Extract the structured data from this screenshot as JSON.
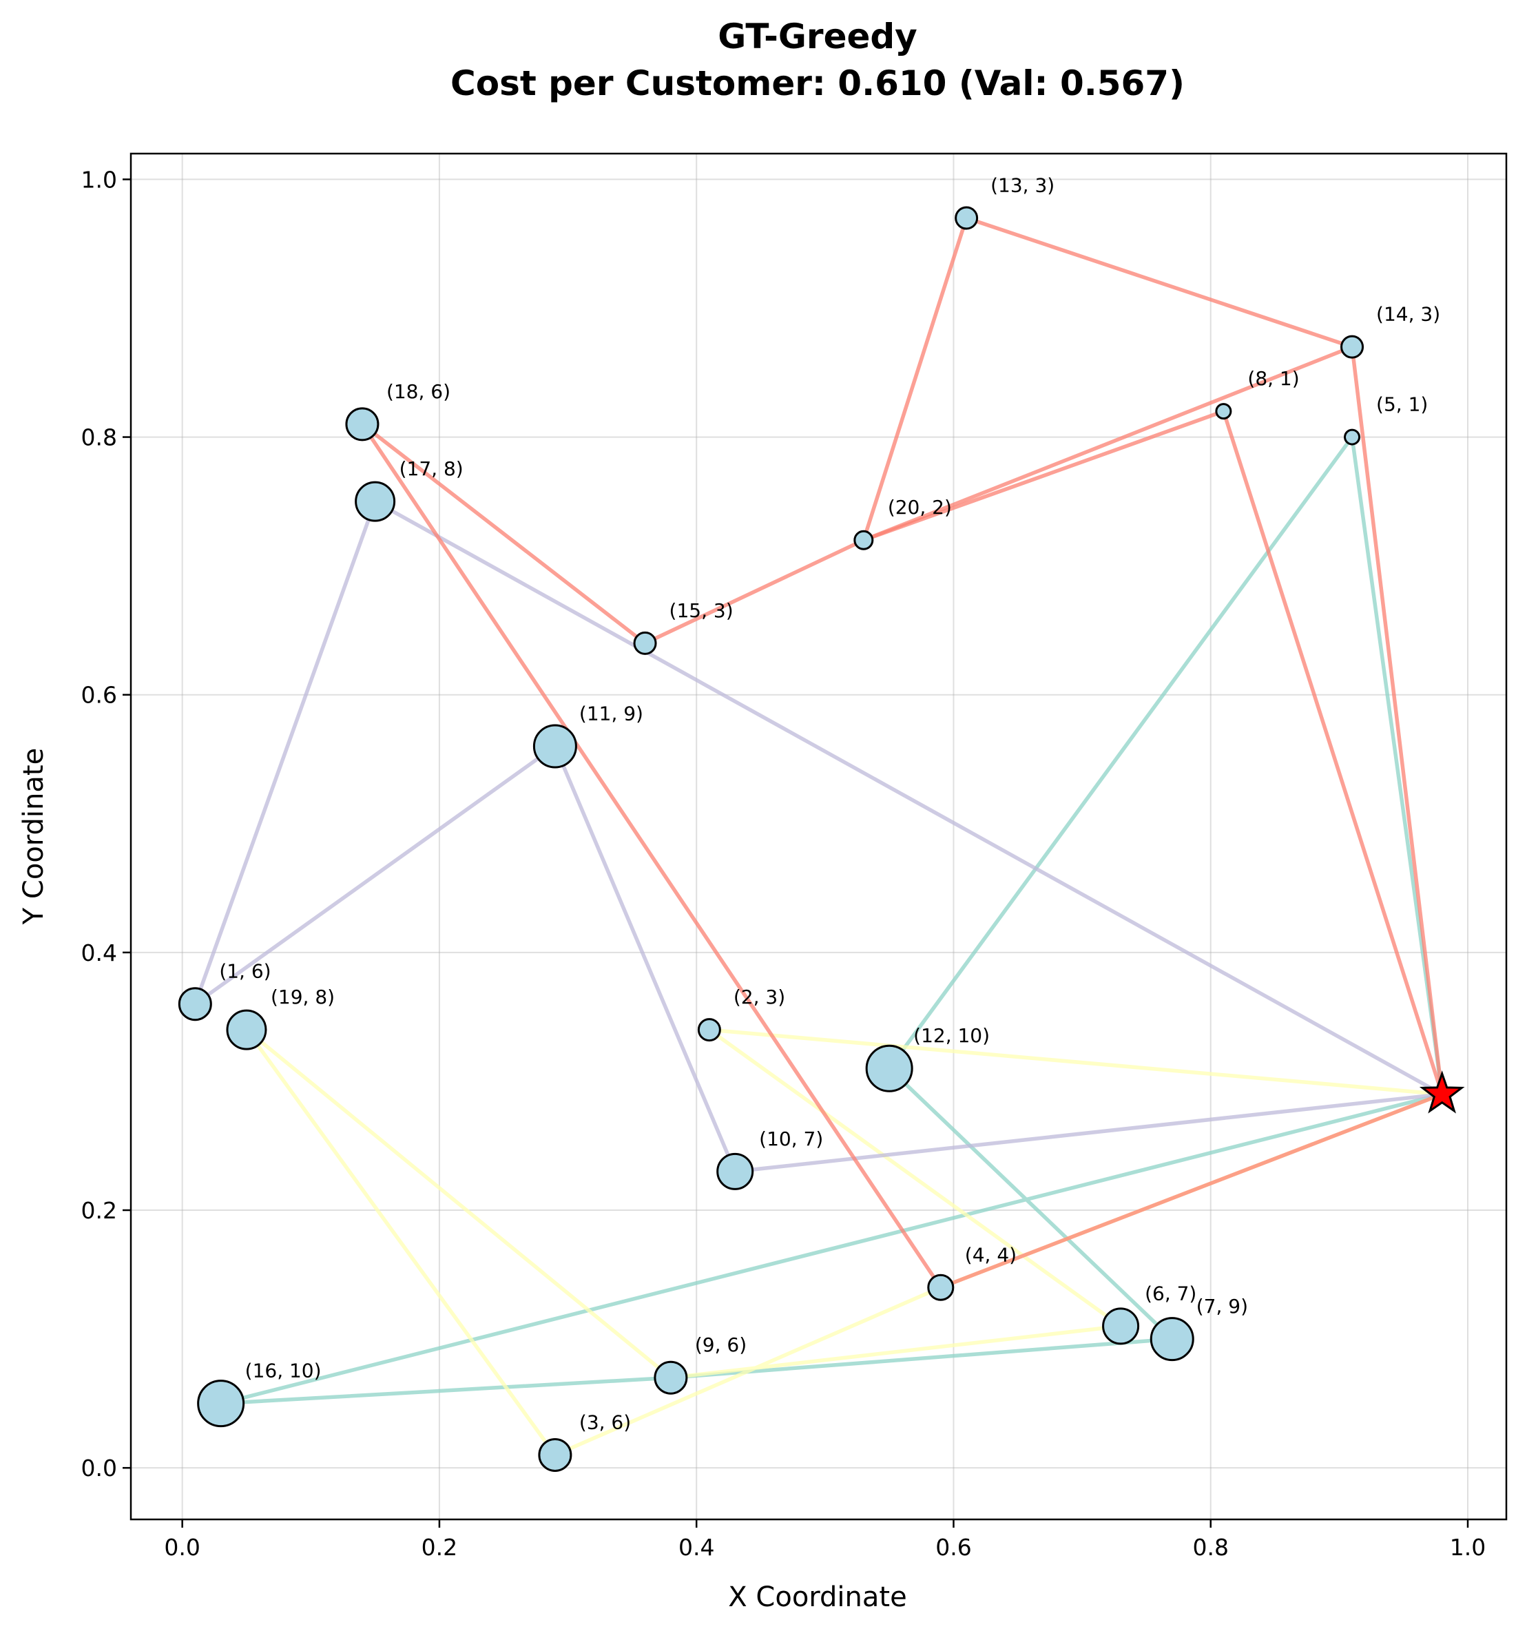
{
  "chart_data": {
    "type": "scatter",
    "title_line1": "GT-Greedy",
    "title_line2": "Cost per Customer: 0.610 (Val: 0.567)",
    "xlabel": "X Coordinate",
    "ylabel": "Y Coordinate",
    "xlim": [
      -0.04,
      1.03
    ],
    "ylim": [
      -0.04,
      1.02
    ],
    "xticks": [
      0.0,
      0.2,
      0.4,
      0.6,
      0.8,
      1.0
    ],
    "yticks": [
      0.0,
      0.2,
      0.4,
      0.6,
      0.8,
      1.0
    ],
    "tick_labels_x": [
      "0.0",
      "0.2",
      "0.4",
      "0.6",
      "0.8",
      "1.0"
    ],
    "tick_labels_y": [
      "0.0",
      "0.2",
      "0.4",
      "0.6",
      "0.8",
      "1.0"
    ],
    "grid": true,
    "depot": {
      "x": 0.98,
      "y": 0.29,
      "color": "#ff0000",
      "marker": "star"
    },
    "customer_color": "#add8e6",
    "customers": [
      {
        "id": 1,
        "demand": 6,
        "x": 0.01,
        "y": 0.36,
        "label": "(1, 6)"
      },
      {
        "id": 2,
        "demand": 3,
        "x": 0.41,
        "y": 0.34,
        "label": "(2, 3)"
      },
      {
        "id": 3,
        "demand": 6,
        "x": 0.29,
        "y": 0.01,
        "label": "(3, 6)"
      },
      {
        "id": 4,
        "demand": 4,
        "x": 0.59,
        "y": 0.14,
        "label": "(4, 4)"
      },
      {
        "id": 5,
        "demand": 1,
        "x": 0.91,
        "y": 0.8,
        "label": "(5, 1)"
      },
      {
        "id": 6,
        "demand": 7,
        "x": 0.73,
        "y": 0.11,
        "label": "(6, 7)"
      },
      {
        "id": 7,
        "demand": 9,
        "x": 0.77,
        "y": 0.1,
        "label": "(7, 9)"
      },
      {
        "id": 8,
        "demand": 1,
        "x": 0.81,
        "y": 0.82,
        "label": "(8, 1)"
      },
      {
        "id": 9,
        "demand": 6,
        "x": 0.38,
        "y": 0.07,
        "label": "(9, 6)"
      },
      {
        "id": 10,
        "demand": 7,
        "x": 0.43,
        "y": 0.23,
        "label": "(10, 7)"
      },
      {
        "id": 11,
        "demand": 9,
        "x": 0.29,
        "y": 0.56,
        "label": "(11, 9)"
      },
      {
        "id": 12,
        "demand": 10,
        "x": 0.55,
        "y": 0.31,
        "label": "(12, 10)"
      },
      {
        "id": 13,
        "demand": 3,
        "x": 0.61,
        "y": 0.97,
        "label": "(13, 3)"
      },
      {
        "id": 14,
        "demand": 3,
        "x": 0.91,
        "y": 0.87,
        "label": "(14, 3)"
      },
      {
        "id": 15,
        "demand": 3,
        "x": 0.36,
        "y": 0.64,
        "label": "(15, 3)"
      },
      {
        "id": 16,
        "demand": 10,
        "x": 0.03,
        "y": 0.05,
        "label": "(16, 10)"
      },
      {
        "id": 17,
        "demand": 8,
        "x": 0.15,
        "y": 0.75,
        "label": "(17, 8)"
      },
      {
        "id": 18,
        "demand": 6,
        "x": 0.14,
        "y": 0.81,
        "label": "(18, 6)"
      },
      {
        "id": 19,
        "demand": 8,
        "x": 0.05,
        "y": 0.34,
        "label": "(19, 8)"
      },
      {
        "id": 20,
        "demand": 2,
        "x": 0.53,
        "y": 0.72,
        "label": "(20, 2)"
      }
    ],
    "routes": [
      {
        "color": "#8dd3c7",
        "stops": [
          0,
          5,
          12,
          7,
          9,
          16,
          0
        ]
      },
      {
        "color": "#ffffb3",
        "stops": [
          0,
          2,
          6,
          9,
          19,
          3,
          4,
          0
        ]
      },
      {
        "color": "#bebada",
        "stops": [
          0,
          10,
          11,
          1,
          17,
          0
        ]
      },
      {
        "color": "#fb8072",
        "stops": [
          0,
          8,
          20,
          15,
          18,
          4,
          0
        ]
      },
      {
        "color": "#fb8072",
        "stops": [
          0,
          14,
          13,
          20,
          14,
          0
        ]
      }
    ]
  }
}
